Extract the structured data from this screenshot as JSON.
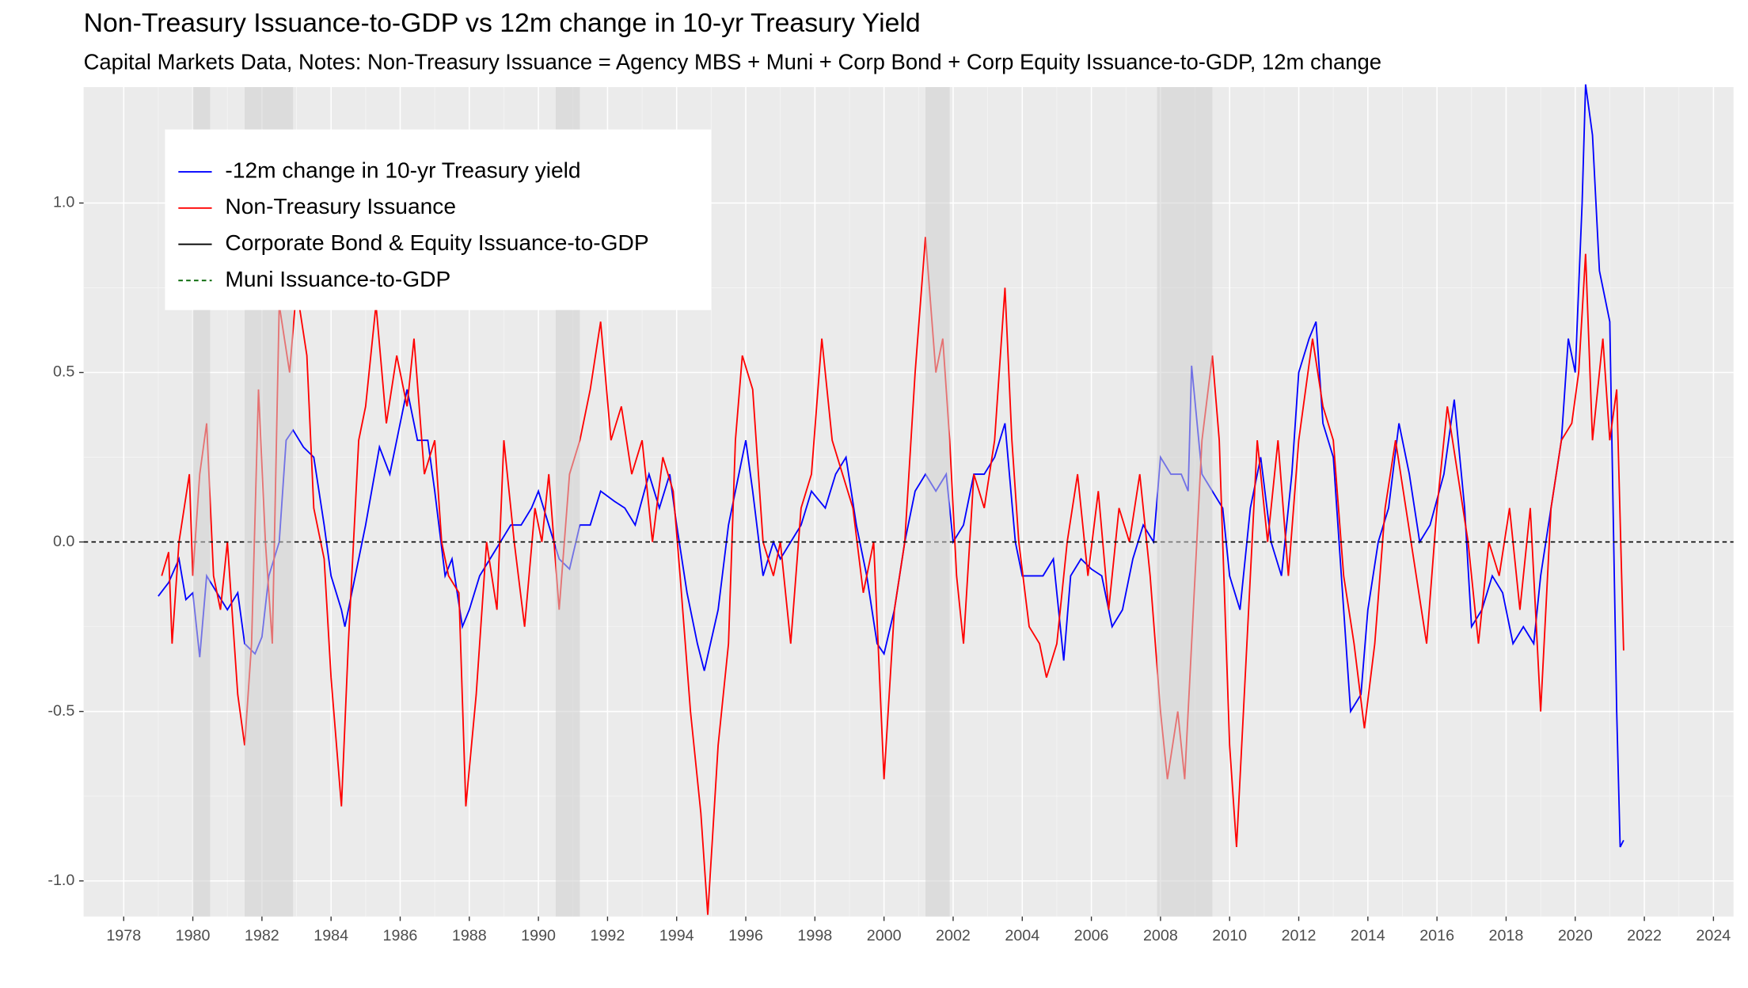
{
  "chart_data": {
    "type": "line",
    "title": "Non-Treasury Issuance-to-GDP vs 12m change in 10-yr Treasury Yield",
    "subtitle": "Capital Markets Data, Notes: Non-Treasury Issuance = Agency MBS + Muni + Corp Bond + Corp Equity Issuance-to-GDP, 12m change",
    "xlim": [
      1976.84,
      2024.58
    ],
    "xticks": [
      1978,
      1980,
      1982,
      1984,
      1986,
      1988,
      1990,
      1992,
      1994,
      1996,
      1998,
      2000,
      2002,
      2004,
      2006,
      2008,
      2010,
      2012,
      2014,
      2016,
      2018,
      2020,
      2022,
      2024
    ],
    "ylim": [
      -1.105,
      1.342
    ],
    "yticks": [
      {
        "value": -1,
        "label": "-1.0"
      },
      -0.5,
      {
        "value": 0,
        "label": "0.0"
      },
      0.5,
      {
        "value": 1,
        "label": "1.0"
      }
    ],
    "grid": true,
    "legend_position": "top-left",
    "hline": 0,
    "shaded_periods": [
      [
        1980.0,
        1980.5
      ],
      [
        1981.5,
        1982.9
      ],
      [
        1990.5,
        1991.2
      ],
      [
        2001.2,
        2001.9
      ],
      [
        2007.9,
        2009.5
      ]
    ],
    "series": [
      {
        "name": "-12m change in 10-yr Treasury yield",
        "color": "#0000ff",
        "dash": false,
        "x": [
          1979.0,
          1979.3,
          1979.6,
          1979.8,
          1980.0,
          1980.2,
          1980.4,
          1980.7,
          1981.0,
          1981.3,
          1981.5,
          1981.8,
          1982.0,
          1982.2,
          1982.5,
          1982.7,
          1982.9,
          1983.2,
          1983.5,
          1983.8,
          1984.0,
          1984.3,
          1984.4,
          1984.7,
          1985.0,
          1985.4,
          1985.7,
          1986.0,
          1986.2,
          1986.5,
          1986.8,
          1987.0,
          1987.3,
          1987.5,
          1987.8,
          1988.0,
          1988.3,
          1988.6,
          1988.9,
          1989.2,
          1989.5,
          1989.8,
          1990.0,
          1990.3,
          1990.6,
          1990.9,
          1991.2,
          1991.5,
          1991.8,
          1992.2,
          1992.5,
          1992.8,
          1993.2,
          1993.5,
          1993.8,
          1994.0,
          1994.3,
          1994.6,
          1994.8,
          1995.2,
          1995.5,
          1995.8,
          1996.0,
          1996.2,
          1996.5,
          1996.8,
          1997.0,
          1997.3,
          1997.6,
          1997.9,
          1998.3,
          1998.6,
          1998.9,
          1999.2,
          1999.5,
          1999.8,
          2000.0,
          2000.3,
          2000.6,
          2000.9,
          2001.2,
          2001.5,
          2001.8,
          2002.0,
          2002.3,
          2002.6,
          2002.9,
          2003.2,
          2003.5,
          2003.8,
          2004.0,
          2004.3,
          2004.6,
          2004.9,
          2005.2,
          2005.4,
          2005.7,
          2006.0,
          2006.3,
          2006.6,
          2006.9,
          2007.2,
          2007.5,
          2007.8,
          2008.0,
          2008.3,
          2008.6,
          2008.8,
          2008.9,
          2009.2,
          2009.5,
          2009.8,
          2010.0,
          2010.3,
          2010.6,
          2010.9,
          2011.2,
          2011.5,
          2011.8,
          2012.0,
          2012.3,
          2012.5,
          2012.7,
          2013.0,
          2013.3,
          2013.5,
          2013.8,
          2014.0,
          2014.3,
          2014.6,
          2014.9,
          2015.2,
          2015.5,
          2015.8,
          2016.2,
          2016.5,
          2016.8,
          2017.0,
          2017.3,
          2017.6,
          2017.9,
          2018.2,
          2018.5,
          2018.8,
          2019.0,
          2019.3,
          2019.6,
          2019.8,
          2020.0,
          2020.2,
          2020.3,
          2020.5,
          2020.7,
          2020.9,
          2021.0,
          2021.2,
          2021.3,
          2021.4
        ],
        "values": [
          -0.16,
          -0.12,
          -0.05,
          -0.17,
          -0.15,
          -0.34,
          -0.1,
          -0.15,
          -0.2,
          -0.15,
          -0.3,
          -0.33,
          -0.28,
          -0.1,
          0.0,
          0.3,
          0.33,
          0.28,
          0.25,
          0.05,
          -0.1,
          -0.2,
          -0.25,
          -0.1,
          0.05,
          0.28,
          0.2,
          0.35,
          0.45,
          0.3,
          0.3,
          0.15,
          -0.1,
          -0.05,
          -0.25,
          -0.2,
          -0.1,
          -0.05,
          0.0,
          0.05,
          0.05,
          0.1,
          0.15,
          0.05,
          -0.05,
          -0.08,
          0.05,
          0.05,
          0.15,
          0.12,
          0.1,
          0.05,
          0.2,
          0.1,
          0.2,
          0.05,
          -0.15,
          -0.3,
          -0.38,
          -0.2,
          0.05,
          0.2,
          0.3,
          0.15,
          -0.1,
          0.0,
          -0.05,
          0.0,
          0.05,
          0.15,
          0.1,
          0.2,
          0.25,
          0.05,
          -0.1,
          -0.3,
          -0.33,
          -0.2,
          0.0,
          0.15,
          0.2,
          0.15,
          0.2,
          0.0,
          0.05,
          0.2,
          0.2,
          0.25,
          0.35,
          0.0,
          -0.1,
          -0.1,
          -0.1,
          -0.05,
          -0.35,
          -0.1,
          -0.05,
          -0.08,
          -0.1,
          -0.25,
          -0.2,
          -0.05,
          0.05,
          0.0,
          0.25,
          0.2,
          0.2,
          0.15,
          0.52,
          0.2,
          0.15,
          0.1,
          -0.1,
          -0.2,
          0.1,
          0.25,
          0.0,
          -0.1,
          0.2,
          0.5,
          0.6,
          0.65,
          0.35,
          0.25,
          -0.2,
          -0.5,
          -0.45,
          -0.2,
          0.0,
          0.1,
          0.35,
          0.2,
          0.0,
          0.05,
          0.2,
          0.42,
          0.1,
          -0.25,
          -0.2,
          -0.1,
          -0.15,
          -0.3,
          -0.25,
          -0.3,
          -0.1,
          0.1,
          0.3,
          0.6,
          0.5,
          1.0,
          1.35,
          1.2,
          0.8,
          0.7,
          0.65,
          -0.5,
          -0.9,
          -0.88
        ]
      },
      {
        "name": "Non-Treasury Issuance",
        "color": "#ff0000",
        "dash": false,
        "x": [
          1979.1,
          1979.3,
          1979.4,
          1979.6,
          1979.9,
          1980.0,
          1980.2,
          1980.4,
          1980.6,
          1980.8,
          1981.0,
          1981.3,
          1981.5,
          1981.7,
          1981.9,
          1982.1,
          1982.3,
          1982.5,
          1982.8,
          1983.0,
          1983.3,
          1983.5,
          1983.8,
          1984.0,
          1984.3,
          1984.5,
          1984.8,
          1985.0,
          1985.3,
          1985.6,
          1985.9,
          1986.2,
          1986.4,
          1986.7,
          1987.0,
          1987.2,
          1987.4,
          1987.7,
          1987.9,
          1988.2,
          1988.5,
          1988.8,
          1989.0,
          1989.3,
          1989.6,
          1989.9,
          1990.1,
          1990.3,
          1990.6,
          1990.9,
          1991.2,
          1991.5,
          1991.8,
          1992.1,
          1992.4,
          1992.7,
          1993.0,
          1993.3,
          1993.6,
          1993.9,
          1994.1,
          1994.4,
          1994.7,
          1994.9,
          1995.2,
          1995.5,
          1995.7,
          1995.9,
          1996.2,
          1996.5,
          1996.8,
          1997.0,
          1997.3,
          1997.6,
          1997.9,
          1998.2,
          1998.5,
          1998.8,
          1999.1,
          1999.4,
          1999.7,
          2000.0,
          2000.3,
          2000.6,
          2000.9,
          2001.2,
          2001.5,
          2001.7,
          2001.9,
          2002.1,
          2002.3,
          2002.6,
          2002.9,
          2003.2,
          2003.5,
          2003.7,
          2003.9,
          2004.2,
          2004.5,
          2004.7,
          2005.0,
          2005.3,
          2005.6,
          2005.9,
          2006.2,
          2006.5,
          2006.8,
          2007.1,
          2007.4,
          2007.7,
          2008.0,
          2008.2,
          2008.5,
          2008.7,
          2008.9,
          2009.2,
          2009.5,
          2009.7,
          2010.0,
          2010.2,
          2010.5,
          2010.8,
          2011.1,
          2011.4,
          2011.7,
          2012.0,
          2012.4,
          2012.7,
          2013.0,
          2013.3,
          2013.6,
          2013.9,
          2014.2,
          2014.5,
          2014.8,
          2015.1,
          2015.4,
          2015.7,
          2016.0,
          2016.3,
          2016.6,
          2016.9,
          2017.2,
          2017.5,
          2017.8,
          2018.1,
          2018.4,
          2018.7,
          2019.0,
          2019.3,
          2019.6,
          2019.9,
          2020.1,
          2020.3,
          2020.5,
          2020.8,
          2021.0,
          2021.2,
          2021.4
        ],
        "values": [
          -0.1,
          -0.03,
          -0.3,
          0.0,
          0.2,
          -0.1,
          0.2,
          0.35,
          -0.1,
          -0.2,
          0.0,
          -0.45,
          -0.6,
          -0.3,
          0.45,
          0.0,
          -0.3,
          0.7,
          0.5,
          0.75,
          0.55,
          0.1,
          -0.05,
          -0.4,
          -0.78,
          -0.3,
          0.3,
          0.4,
          0.7,
          0.35,
          0.55,
          0.4,
          0.6,
          0.2,
          0.3,
          0.0,
          -0.1,
          -0.15,
          -0.78,
          -0.45,
          0.0,
          -0.2,
          0.3,
          0.0,
          -0.25,
          0.1,
          0.0,
          0.2,
          -0.2,
          0.2,
          0.3,
          0.45,
          0.65,
          0.3,
          0.4,
          0.2,
          0.3,
          0.0,
          0.25,
          0.15,
          -0.1,
          -0.5,
          -0.8,
          -1.1,
          -0.6,
          -0.3,
          0.3,
          0.55,
          0.45,
          0.0,
          -0.1,
          0.0,
          -0.3,
          0.1,
          0.2,
          0.6,
          0.3,
          0.2,
          0.1,
          -0.15,
          0.0,
          -0.7,
          -0.2,
          0.0,
          0.5,
          0.9,
          0.5,
          0.6,
          0.3,
          -0.1,
          -0.3,
          0.2,
          0.1,
          0.3,
          0.75,
          0.3,
          0.0,
          -0.25,
          -0.3,
          -0.4,
          -0.3,
          0.0,
          0.2,
          -0.1,
          0.15,
          -0.2,
          0.1,
          0.0,
          0.2,
          -0.1,
          -0.5,
          -0.7,
          -0.5,
          -0.7,
          -0.3,
          0.3,
          0.55,
          0.3,
          -0.6,
          -0.9,
          -0.3,
          0.3,
          0.0,
          0.3,
          -0.1,
          0.3,
          0.6,
          0.4,
          0.3,
          -0.1,
          -0.3,
          -0.55,
          -0.3,
          0.1,
          0.3,
          0.1,
          -0.1,
          -0.3,
          0.1,
          0.4,
          0.2,
          0.0,
          -0.3,
          0.0,
          -0.1,
          0.1,
          -0.2,
          0.1,
          -0.5,
          0.1,
          0.3,
          0.35,
          0.5,
          0.85,
          0.3,
          0.6,
          0.3,
          0.45,
          -0.32
        ]
      },
      {
        "name": "Corporate Bond & Equity Issuance-to-GDP",
        "color": "#000000",
        "dash": false,
        "x": [],
        "values": []
      },
      {
        "name": "Muni Issuance-to-GDP",
        "color": "#006400",
        "dash": true,
        "x": [],
        "values": []
      }
    ]
  }
}
